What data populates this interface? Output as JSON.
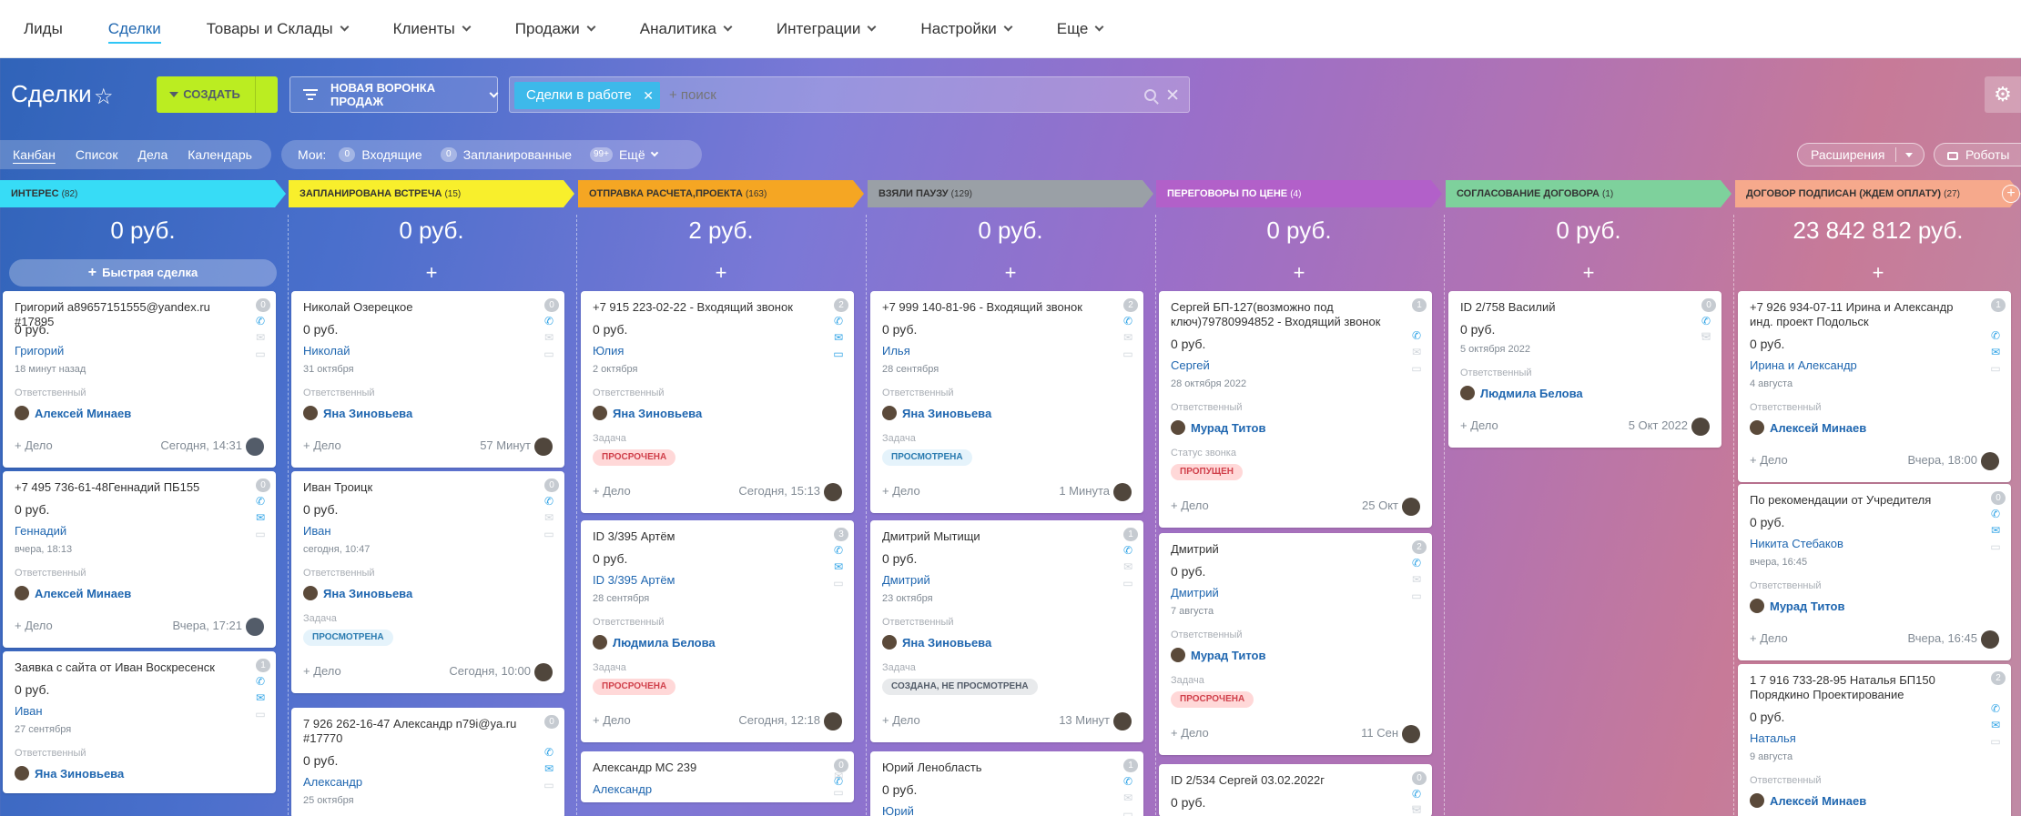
{
  "nav": [
    "Лиды",
    "Сделки",
    "Товары и Склады",
    "Клиенты",
    "Продажи",
    "Аналитика",
    "Интеграции",
    "Настройки",
    "Еще"
  ],
  "nav_dropdown": [
    false,
    false,
    true,
    true,
    true,
    true,
    true,
    true,
    true
  ],
  "page_title": "Сделки",
  "create_label": "СОЗДАТЬ",
  "funnel_label": "НОВАЯ ВОРОНКА ПРОДАЖ",
  "filter_chip": "Сделки в работе",
  "search_placeholder": "+ поиск",
  "views": [
    "Канбан",
    "Список",
    "Дела",
    "Календарь"
  ],
  "mine": {
    "label": "Мои:",
    "items": [
      {
        "count": "0",
        "label": "Входящие"
      },
      {
        "count": "0",
        "label": "Запланированные"
      },
      {
        "count": "99+",
        "label": "Ещё"
      }
    ]
  },
  "extensions": "Расширения",
  "robots": "Роботы",
  "quick_deal": "Быстрая сделка",
  "add_activity": "+ Дело",
  "resp_label": "Ответственный",
  "task_label": "Задача",
  "call_status_label": "Статус звонка",
  "colors": {
    "accent": "#2067b0",
    "create": "#bbed21"
  },
  "columns": [
    {
      "name": "Интерес",
      "count": "(82)",
      "sum": "0 руб.",
      "color": "#37dcf6",
      "cards": [
        {
          "title": "Григорий a89657151555@yandex.ru #17895",
          "badge": "0",
          "price": "0 руб.",
          "contact": "Григорий",
          "date": "18 минут назад",
          "resp": "Алексей Минаев",
          "time": "Сегодня, 14:31"
        },
        {
          "title": "+7 495 736-61-48Геннадий ПБ155",
          "badge": "0",
          "price": "0 руб.",
          "contact": "Геннадий",
          "date": "вчера, 18:13",
          "resp": "Алексей Минаев",
          "time": "Вчера, 17:21"
        },
        {
          "title": "Заявка с сайта от Иван Воскресенск",
          "badge": "1",
          "price": "0 руб.",
          "contact": "Иван",
          "date": "27 сентября",
          "resp": "Яна Зиновьева"
        }
      ]
    },
    {
      "name": "Запланирована встреча",
      "count": "(15)",
      "sum": "0 руб.",
      "color": "#f8ef2c",
      "cards": [
        {
          "title": "Николай Озерецкое",
          "badge": "0",
          "price": "0 руб.",
          "contact": "Николай",
          "date": "31 октября",
          "resp": "Яна Зиновьева",
          "time": "57 Минут"
        },
        {
          "title": "Иван Троицк",
          "badge": "0",
          "price": "0 руб.",
          "contact": "Иван",
          "date": "сегодня, 10:47",
          "resp": "Яна Зиновьева",
          "task": "ПРОСМОТРЕНА",
          "task_kind": "blue",
          "time": "Сегодня, 10:00"
        },
        {
          "title": "7 926 262-16-47 Александр n79i@ya.ru #17770",
          "badge": "0",
          "price": "0 руб.",
          "contact": "Александр",
          "date": "25 октября"
        }
      ]
    },
    {
      "name": "Отправка расчета,проекта",
      "count": "(163)",
      "sum": "2 руб.",
      "color": "#f5a623",
      "cards": [
        {
          "title": "+7 915 223-02-22 - Входящий звонок",
          "badge": "2",
          "price": "0 руб.",
          "contact": "Юлия",
          "date": "2 октября",
          "resp": "Яна Зиновьева",
          "task": "ПРОСРОЧЕНА",
          "task_kind": "red",
          "time": "Сегодня, 15:13"
        },
        {
          "title": "ID 3/395 Артём",
          "badge": "3",
          "price": "0 руб.",
          "contact": "ID 3/395 Артём",
          "date": "28 сентября",
          "resp": "Людмила Белова",
          "task": "ПРОСРОЧЕНА",
          "task_kind": "red",
          "time": "Сегодня, 12:18"
        },
        {
          "title": "Александр МС 239",
          "badge": "0",
          "price": "",
          "contact": "Александр"
        }
      ]
    },
    {
      "name": "Взяли паузу",
      "count": "(129)",
      "sum": "0 руб.",
      "color": "#9aa0a6",
      "cards": [
        {
          "title": "+7 999 140-81-96 - Входящий звонок",
          "badge": "2",
          "price": "0 руб.",
          "contact": "Илья",
          "date": "28 сентября",
          "resp": "Яна Зиновьева",
          "task": "ПРОСМОТРЕНА",
          "task_kind": "blue",
          "time": "1 Минута"
        },
        {
          "title": "Дмитрий Мытищи",
          "badge": "1",
          "price": "0 руб.",
          "contact": "Дмитрий",
          "date": "23 октября",
          "resp": "Яна Зиновьева",
          "task": "СОЗДАНА, НЕ ПРОСМОТРЕНА",
          "task_kind": "gray",
          "time": "13 Минут"
        },
        {
          "title": "Юрий Ленобласть",
          "badge": "1",
          "price": "0 руб.",
          "contact": "Юрий"
        }
      ]
    },
    {
      "name": "Переговоры по цене",
      "count": "(4)",
      "sum": "0 руб.",
      "color": "#b260c9",
      "light": true,
      "cards": [
        {
          "title": "Сергей БП-127(возможно под ключ)79780994852 - Входящий звонок",
          "badge": "1",
          "price": "0 руб.",
          "contact": "Сергей",
          "date": "28 октября 2022",
          "resp": "Мурад Титов",
          "call": "ПРОПУЩЕН",
          "time": "25 Окт"
        },
        {
          "title": "Дмитрий",
          "badge": "2",
          "price": "0 руб.",
          "contact": "Дмитрий",
          "date": "7 августа",
          "resp": "Мурад Титов",
          "task": "ПРОСРОЧЕНА",
          "task_kind": "red",
          "time": "11 Сен"
        },
        {
          "title": "ID 2/534 Сергей 03.02.2022г",
          "badge": "0",
          "price": "0 руб."
        }
      ]
    },
    {
      "name": "Согласование договора",
      "count": "(1)",
      "sum": "0 руб.",
      "color": "#7ed19c",
      "cards": [
        {
          "title": "ID 2/758 Василий",
          "badge": "0",
          "price": "0 руб.",
          "date": "5 октября 2022",
          "resp": "Людмила Белова",
          "time": "5 Окт 2022"
        }
      ]
    },
    {
      "name": "Договор подписан (Ждем оплату)",
      "count": "(27)",
      "sum": "23 842 812 руб.",
      "color": "#f6a98c",
      "cards": [
        {
          "title": "+7 926 934-07-11 Ирина и Александр инд. проект Подольск",
          "badge": "1",
          "price": "0 руб.",
          "contact": "Ирина и Александр",
          "date": "4 августа",
          "resp": "Алексей Минаев",
          "time": "Вчера, 18:00"
        },
        {
          "title": "По рекомендации от Учредителя",
          "badge": "0",
          "price": "0 руб.",
          "contact": "Никита Стебаков",
          "date": "вчера, 16:45",
          "resp": "Мурад Титов",
          "time": "Вчера, 16:45"
        },
        {
          "title": "1 7 916 733-28-95 Наталья БП150 Порядкино Проектирование",
          "badge": "2",
          "price": "0 руб.",
          "contact": "Наталья",
          "date": "9 августа",
          "resp": "Алексей Минаев"
        }
      ]
    }
  ]
}
